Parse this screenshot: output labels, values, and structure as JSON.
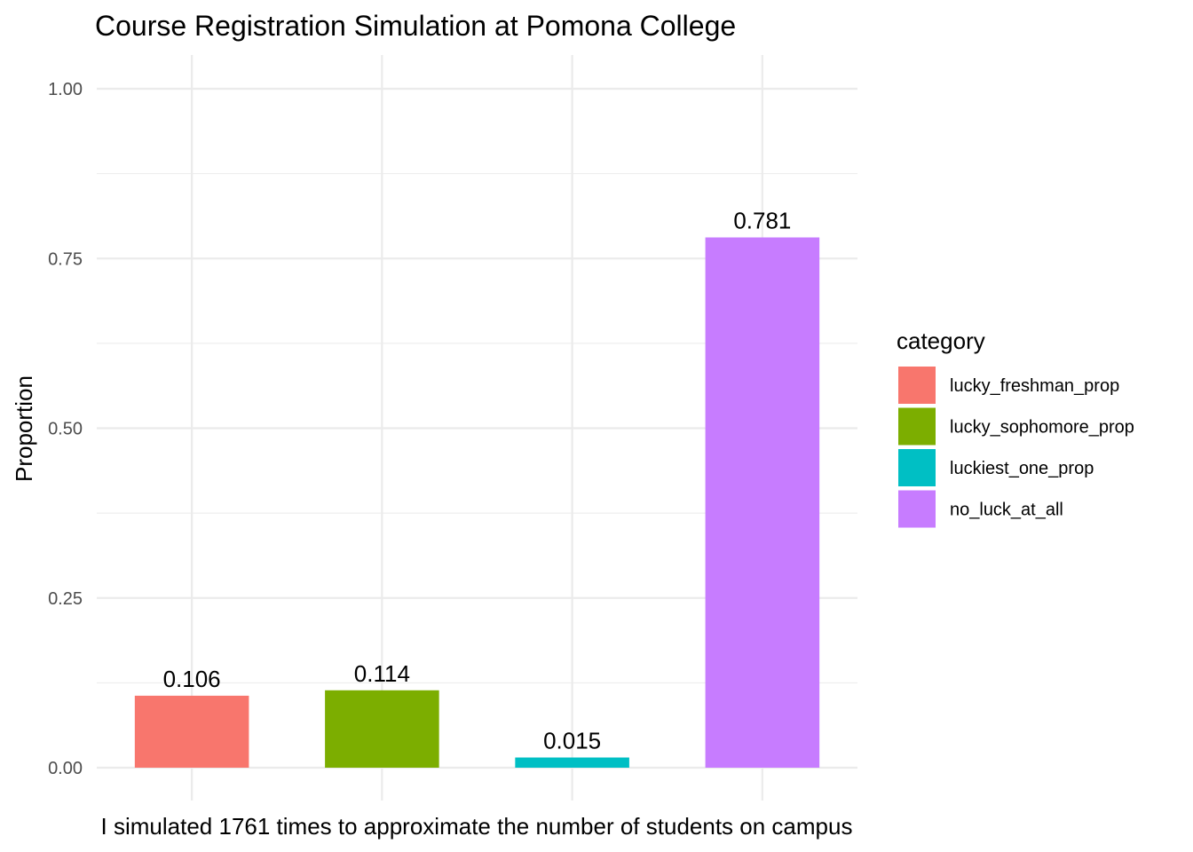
{
  "chart_data": {
    "type": "bar",
    "title": "Course Registration Simulation at Pomona College",
    "xlabel": "I simulated 1761 times to approximate the number of students on campus",
    "ylabel": "Proportion",
    "categories": [
      "lucky_freshman_prop",
      "lucky_sophomore_prop",
      "luckiest_one_prop",
      "no_luck_at_all"
    ],
    "values": [
      0.106,
      0.114,
      0.015,
      0.781
    ],
    "data_labels": [
      "0.106",
      "0.114",
      "0.015",
      "0.781"
    ],
    "colors": [
      "#F8766D",
      "#7CAE00",
      "#00BFC4",
      "#C77CFF"
    ],
    "ylim": [
      0,
      1
    ],
    "yticks": [
      0,
      0.25,
      0.5,
      0.75,
      1
    ],
    "ytick_labels": [
      "0.00",
      "0.25",
      "0.50",
      "0.75",
      "1.00"
    ],
    "show_x_tick_labels": false,
    "grid": true,
    "legend": {
      "title": "category",
      "position": "right",
      "entries": [
        "lucky_freshman_prop",
        "lucky_sophomore_prop",
        "luckiest_one_prop",
        "no_luck_at_all"
      ]
    }
  }
}
